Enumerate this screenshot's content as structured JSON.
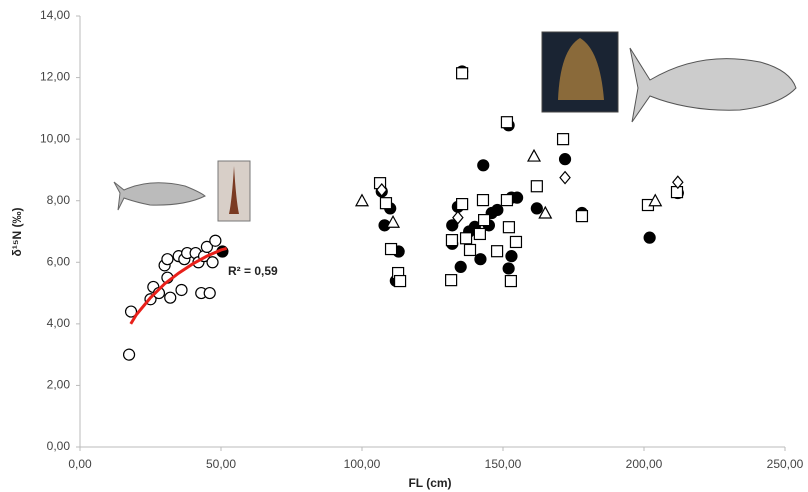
{
  "chart_data": {
    "type": "scatter",
    "xlabel": "FL (cm)",
    "ylabel": "δ¹⁵N (‰)",
    "annotation": "R² = 0,59",
    "xlim": [
      0,
      250
    ],
    "ylim": [
      0,
      14
    ],
    "xticks": [
      {
        "value": 0,
        "label": "0,00"
      },
      {
        "value": 50,
        "label": "50,00"
      },
      {
        "value": 100,
        "label": "100,00"
      },
      {
        "value": 150,
        "label": "150,00"
      },
      {
        "value": 200,
        "label": "200,00"
      },
      {
        "value": 250,
        "label": "250,00"
      }
    ],
    "yticks": [
      {
        "value": 0,
        "label": "0,00"
      },
      {
        "value": 2,
        "label": "2,00"
      },
      {
        "value": 4,
        "label": "4,00"
      },
      {
        "value": 6,
        "label": "6,00"
      },
      {
        "value": 8,
        "label": "8,00"
      },
      {
        "value": 10,
        "label": "10,00"
      },
      {
        "value": 12,
        "label": "12,00"
      },
      {
        "value": 14,
        "label": "14,00"
      }
    ],
    "grid": false,
    "series": [
      {
        "marker": "circle",
        "color": "#000",
        "filled": false,
        "x": [
          17.4,
          18.1,
          25,
          26,
          28,
          30,
          31,
          31,
          32,
          35,
          36,
          37,
          38,
          41,
          42,
          43,
          44,
          45,
          46,
          47,
          48
        ],
        "values": [
          3.0,
          4.4,
          4.8,
          5.2,
          5.0,
          5.9,
          5.5,
          6.1,
          4.85,
          6.2,
          5.1,
          6.1,
          6.3,
          6.3,
          6.0,
          5.0,
          6.2,
          6.5,
          5.0,
          6.0,
          6.7
        ]
      },
      {
        "marker": "circle",
        "color": "#000",
        "filled": true,
        "x": [
          135.5,
          152,
          143,
          172,
          107,
          110,
          108,
          113,
          112,
          134,
          132,
          132,
          135,
          138,
          140,
          142,
          145,
          146,
          148,
          152,
          153,
          155,
          153,
          162,
          178,
          202,
          212,
          50.5
        ],
        "values": [
          12.2,
          10.45,
          9.15,
          9.35,
          8.3,
          7.75,
          7.2,
          6.35,
          5.4,
          7.8,
          7.2,
          6.6,
          5.85,
          7.0,
          7.15,
          6.1,
          7.2,
          7.6,
          7.7,
          5.8,
          6.2,
          8.1,
          8.1,
          7.75,
          7.6,
          6.8,
          8.25,
          6.35
        ]
      },
      {
        "marker": "square",
        "color": "#000",
        "filled": false,
        "x": [
          106.4,
          108.5,
          110.3,
          112.8,
          113.5,
          131.6,
          131.9,
          135.5,
          136.9,
          138.3,
          141.8,
          142.9,
          143.3,
          147.9,
          151.4,
          152.1,
          152.8,
          154.6,
          162,
          171.3,
          178,
          201.4,
          211.7,
          135.5,
          151.4
        ],
        "values": [
          8.57,
          7.92,
          6.43,
          5.65,
          5.39,
          5.42,
          6.72,
          7.89,
          6.78,
          6.4,
          6.92,
          8.02,
          7.37,
          6.36,
          8.02,
          7.14,
          5.39,
          6.66,
          8.47,
          10.0,
          7.5,
          7.86,
          8.28,
          12.14,
          10.55
        ]
      },
      {
        "marker": "triangle",
        "color": "#000",
        "filled": false,
        "x": [
          100,
          161,
          165,
          204,
          111
        ],
        "values": [
          8.0,
          9.45,
          7.6,
          8.0,
          7.3
        ]
      },
      {
        "marker": "diamond",
        "color": "#000",
        "filled": false,
        "x": [
          134,
          172,
          212,
          107
        ],
        "values": [
          7.45,
          8.75,
          8.6,
          8.35
        ]
      },
      {
        "marker": "line",
        "color": "#e8201a",
        "filled": false,
        "x": [
          18,
          20,
          25,
          30,
          35,
          40,
          45,
          50,
          52
        ],
        "values": [
          4.0,
          4.3,
          4.85,
          5.3,
          5.65,
          5.95,
          6.2,
          6.4,
          6.45
        ]
      }
    ]
  }
}
